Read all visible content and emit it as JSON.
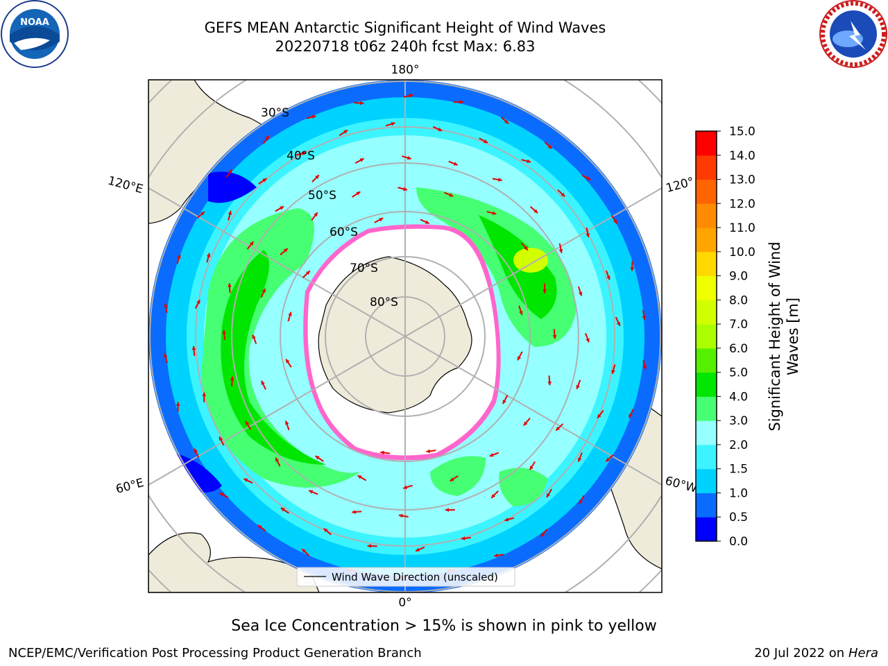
{
  "title_line1": "GEFS MEAN Antarctic Significant Height of Wind Waves",
  "title_line2": "20220718 t06z 240h fcst   Max: 6.83",
  "logos": {
    "left": {
      "name": "noaa-logo",
      "text": "NOAA",
      "ring_text": "NATIONAL OCEANIC AND ATMOSPHERIC ADMINISTRATION · U.S. DEPARTMENT OF COMMERCE"
    },
    "right": {
      "name": "nws-logo",
      "ring_text": "NATIONAL WEATHER SERVICE"
    }
  },
  "map": {
    "longitude_labels": {
      "top": "180°",
      "upper_left": "120°E",
      "upper_right": "120°",
      "lower_left": "60°E",
      "lower_right": "60°W",
      "bottom": "0°"
    },
    "latitude_labels": [
      "30°S",
      "40°S",
      "50°S",
      "60°S",
      "70°S",
      "80°S"
    ],
    "legend": "Wind Wave Direction (unscaled)"
  },
  "colorbar": {
    "label_line1": "Significant Height of Wind",
    "label_line2": "Waves [m]",
    "ticks": [
      "0.0",
      "0.5",
      "1.0",
      "1.5",
      "2.0",
      "3.0",
      "4.0",
      "5.0",
      "6.0",
      "7.0",
      "8.0",
      "9.0",
      "10.0",
      "11.0",
      "12.0",
      "13.0",
      "14.0",
      "15.0"
    ],
    "colors": [
      "#0000ff",
      "#0a6cff",
      "#00d2ff",
      "#3cf4ff",
      "#96ffff",
      "#46ff73",
      "#00e600",
      "#55f000",
      "#aaff00",
      "#d2ff00",
      "#f0ff00",
      "#ffd800",
      "#ffa500",
      "#ff8c00",
      "#ff6400",
      "#ff3a00",
      "#ff0000"
    ]
  },
  "bottom_note": "Sea Ice Concentration > 15% is shown in pink to yellow",
  "footer_left": "NCEP/EMC/Verification Post Processing Product Generation Branch",
  "footer_right_prefix": "20 Jul 2022 on ",
  "footer_right_italic": "Hera"
}
